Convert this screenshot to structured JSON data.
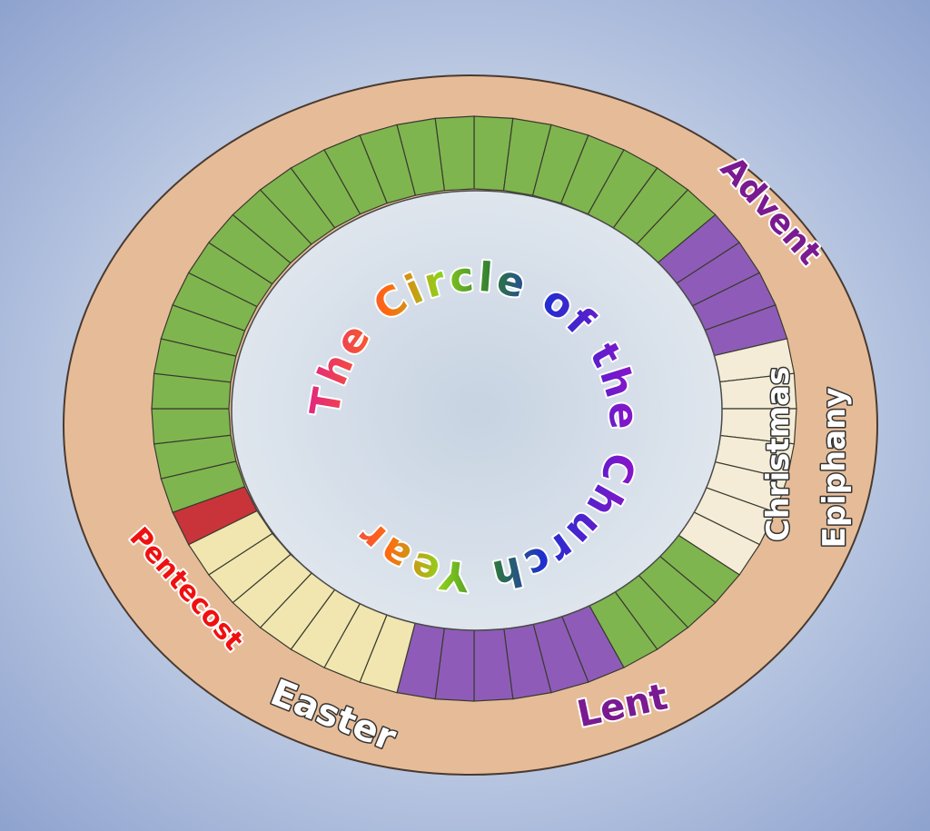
{
  "title": "The Circle of the Church Year",
  "seasons": {
    "advent": "Advent",
    "christmas": "Christmas",
    "epiphany": "Epiphany",
    "lent": "Lent",
    "easter": "Easter",
    "pentecost": "Pentecost"
  }
}
